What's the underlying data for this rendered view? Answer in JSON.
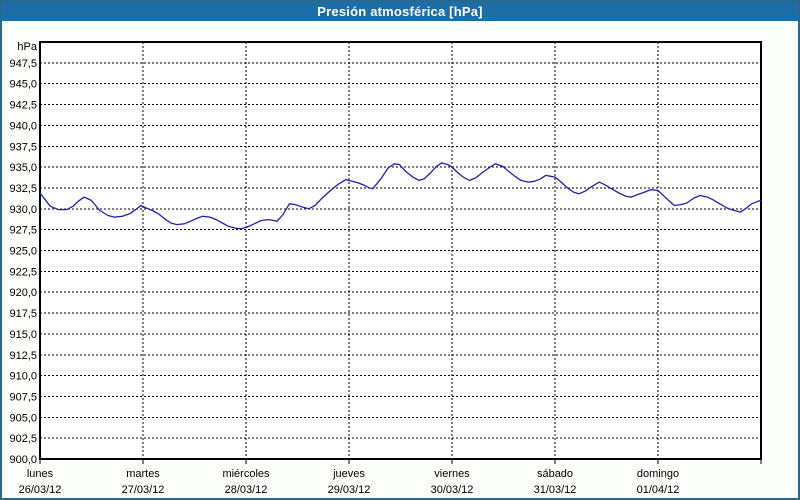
{
  "window": {
    "title": "Presión atmosférica [hPa]",
    "colors": {
      "titlebar_bg": "#1d6da6",
      "titlebar_text": "#ffffff",
      "window_border": "#27698f",
      "window_bg": "#fcfefc",
      "plot_bg": "#ffffff",
      "plot_border": "#000000",
      "grid": "#000000",
      "series_line": "#2121b0",
      "label_text": "#000000"
    }
  },
  "chart_data": {
    "type": "line",
    "title": "Presión atmosférica [hPa]",
    "ylabel": "hPa",
    "grid": true,
    "y_axis": {
      "min": 900,
      "max": 950,
      "tick_step": 2.5,
      "tick_labels": [
        "947,5",
        "945,0",
        "942,5",
        "940,0",
        "937,5",
        "935,0",
        "932,5",
        "930,0",
        "927,5",
        "925,0",
        "922,5",
        "920,0",
        "917,5",
        "915,0",
        "912,5",
        "910,0",
        "907,5",
        "905,0",
        "902,5",
        "900,0"
      ]
    },
    "x_axis": {
      "min_day": 0,
      "max_day": 7,
      "categories": [
        {
          "day": "lunes",
          "date": "26/03/12"
        },
        {
          "day": "martes",
          "date": "27/03/12"
        },
        {
          "day": "miércoles",
          "date": "28/03/12"
        },
        {
          "day": "jueves",
          "date": "29/03/12"
        },
        {
          "day": "viernes",
          "date": "30/03/12"
        },
        {
          "day": "sábado",
          "date": "31/03/12"
        },
        {
          "day": "domingo",
          "date": "01/04/12"
        }
      ]
    },
    "series": [
      {
        "name": "Presión atmosférica",
        "unit": "hPa",
        "points": [
          [
            0.0,
            931.9
          ],
          [
            0.1,
            930.3
          ],
          [
            0.18,
            929.9
          ],
          [
            0.26,
            929.9
          ],
          [
            0.32,
            930.3
          ],
          [
            0.37,
            930.9
          ],
          [
            0.43,
            931.4
          ],
          [
            0.5,
            931.0
          ],
          [
            0.58,
            929.8
          ],
          [
            0.66,
            929.2
          ],
          [
            0.72,
            929.0
          ],
          [
            0.8,
            929.1
          ],
          [
            0.87,
            929.4
          ],
          [
            0.94,
            930.0
          ],
          [
            0.98,
            930.4
          ],
          [
            1.03,
            930.1
          ],
          [
            1.09,
            929.8
          ],
          [
            1.15,
            929.4
          ],
          [
            1.22,
            928.7
          ],
          [
            1.27,
            928.3
          ],
          [
            1.33,
            928.1
          ],
          [
            1.4,
            928.2
          ],
          [
            1.46,
            928.5
          ],
          [
            1.53,
            928.9
          ],
          [
            1.58,
            929.1
          ],
          [
            1.65,
            929.0
          ],
          [
            1.71,
            928.7
          ],
          [
            1.77,
            928.3
          ],
          [
            1.83,
            927.9
          ],
          [
            1.89,
            927.7
          ],
          [
            1.95,
            927.6
          ],
          [
            2.01,
            927.8
          ],
          [
            2.08,
            928.2
          ],
          [
            2.15,
            928.6
          ],
          [
            2.22,
            928.7
          ],
          [
            2.27,
            928.6
          ],
          [
            2.3,
            928.5
          ],
          [
            2.36,
            929.3
          ],
          [
            2.42,
            930.6
          ],
          [
            2.48,
            930.5
          ],
          [
            2.55,
            930.2
          ],
          [
            2.61,
            930.0
          ],
          [
            2.67,
            930.4
          ],
          [
            2.74,
            931.3
          ],
          [
            2.82,
            932.2
          ],
          [
            2.89,
            932.9
          ],
          [
            2.97,
            933.5
          ],
          [
            3.03,
            933.3
          ],
          [
            3.09,
            933.1
          ],
          [
            3.15,
            932.8
          ],
          [
            3.2,
            932.5
          ],
          [
            3.23,
            932.4
          ],
          [
            3.31,
            933.6
          ],
          [
            3.38,
            934.9
          ],
          [
            3.44,
            935.4
          ],
          [
            3.49,
            935.3
          ],
          [
            3.55,
            934.5
          ],
          [
            3.62,
            933.8
          ],
          [
            3.68,
            933.4
          ],
          [
            3.73,
            933.6
          ],
          [
            3.79,
            934.3
          ],
          [
            3.85,
            935.1
          ],
          [
            3.9,
            935.5
          ],
          [
            3.96,
            935.3
          ],
          [
            4.0,
            935.0
          ],
          [
            4.05,
            934.4
          ],
          [
            4.11,
            933.8
          ],
          [
            4.17,
            933.4
          ],
          [
            4.23,
            933.7
          ],
          [
            4.3,
            934.4
          ],
          [
            4.37,
            935.0
          ],
          [
            4.42,
            935.4
          ],
          [
            4.49,
            935.1
          ],
          [
            4.55,
            934.5
          ],
          [
            4.61,
            933.9
          ],
          [
            4.67,
            933.4
          ],
          [
            4.74,
            933.2
          ],
          [
            4.8,
            933.3
          ],
          [
            4.86,
            933.6
          ],
          [
            4.91,
            934.0
          ],
          [
            4.96,
            933.9
          ],
          [
            5.0,
            933.8
          ],
          [
            5.06,
            933.2
          ],
          [
            5.12,
            932.5
          ],
          [
            5.18,
            932.0
          ],
          [
            5.23,
            931.8
          ],
          [
            5.29,
            932.1
          ],
          [
            5.36,
            932.7
          ],
          [
            5.43,
            933.2
          ],
          [
            5.48,
            932.9
          ],
          [
            5.55,
            932.4
          ],
          [
            5.62,
            931.9
          ],
          [
            5.69,
            931.5
          ],
          [
            5.74,
            931.4
          ],
          [
            5.8,
            931.7
          ],
          [
            5.87,
            932.0
          ],
          [
            5.93,
            932.3
          ],
          [
            6.0,
            932.2
          ],
          [
            6.06,
            931.5
          ],
          [
            6.12,
            930.8
          ],
          [
            6.16,
            930.4
          ],
          [
            6.22,
            930.5
          ],
          [
            6.28,
            930.7
          ],
          [
            6.35,
            931.3
          ],
          [
            6.41,
            931.6
          ],
          [
            6.48,
            931.4
          ],
          [
            6.53,
            931.1
          ],
          [
            6.6,
            930.6
          ],
          [
            6.67,
            930.1
          ],
          [
            6.74,
            929.8
          ],
          [
            6.8,
            929.6
          ],
          [
            6.85,
            930.0
          ],
          [
            6.91,
            930.6
          ],
          [
            6.97,
            930.9
          ],
          [
            7.0,
            931.0
          ]
        ]
      }
    ]
  }
}
